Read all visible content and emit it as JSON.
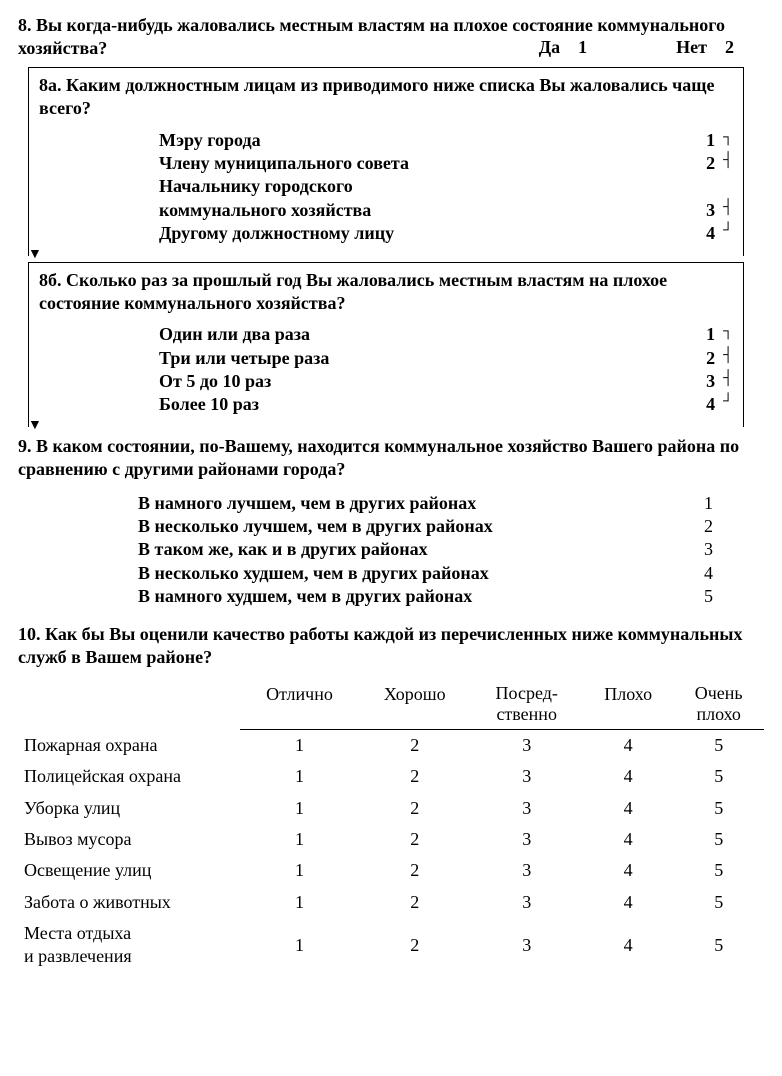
{
  "q8": {
    "text": "8. Вы когда-нибудь жаловались местным властям на плохое состояние коммунального хозяйства?",
    "yes_label": "Да",
    "yes_code": "1",
    "no_label": "Нет",
    "no_code": "2"
  },
  "q8a": {
    "text": "8а. Каким должностным лицам из приводимого ниже списка Вы жаловались чаще всего?",
    "options": [
      {
        "label": "Мэру города",
        "code": "1"
      },
      {
        "label": "Члену муниципального совета",
        "code": "2"
      },
      {
        "label_line1": "Начальнику городского",
        "label_line2": "коммунального хозяйства",
        "code": "3"
      },
      {
        "label": "Другому должностному лицу",
        "code": "4"
      }
    ]
  },
  "q8b": {
    "text": "8б. Сколько раз за прошлый год Вы жаловались местным властям на плохое состояние коммунального хозяйства?",
    "options": [
      {
        "label": "Один или два раза",
        "code": "1"
      },
      {
        "label": "Три или четыре раза",
        "code": "2"
      },
      {
        "label": "От 5 до 10 раз",
        "code": "3"
      },
      {
        "label": "Более 10 раз",
        "code": "4"
      }
    ]
  },
  "q9": {
    "text": "9. В каком состоянии, по-Вашему, находится коммунальное хозяйство Вашего района по сравнению с другими районами города?",
    "options": [
      {
        "label": "В намного лучшем, чем в других районах",
        "code": "1"
      },
      {
        "label": "В несколько лучшем, чем в других районах",
        "code": "2"
      },
      {
        "label": "В таком же, как и в других районах",
        "code": "3"
      },
      {
        "label": "В несколько худшем, чем в других районах",
        "code": "4"
      },
      {
        "label": "В намного худшем, чем в других районах",
        "code": "5"
      }
    ]
  },
  "q10": {
    "text": "10. Как бы Вы оценили качество работы каждой из перечисленных ниже коммунальных служб в Вашем районе?",
    "columns": [
      "Отлично",
      "Хорошо",
      "Посред-\nственно",
      "Плохо",
      "Очень\nплохо"
    ],
    "rows": [
      {
        "label": "Пожарная охрана",
        "values": [
          "1",
          "2",
          "3",
          "4",
          "5"
        ]
      },
      {
        "label": "Полицейская охрана",
        "values": [
          "1",
          "2",
          "3",
          "4",
          "5"
        ]
      },
      {
        "label": "Уборка улиц",
        "values": [
          "1",
          "2",
          "3",
          "4",
          "5"
        ]
      },
      {
        "label": "Вывоз мусора",
        "values": [
          "1",
          "2",
          "3",
          "4",
          "5"
        ]
      },
      {
        "label": "Освещение улиц",
        "values": [
          "1",
          "2",
          "3",
          "4",
          "5"
        ]
      },
      {
        "label": "Забота о животных",
        "values": [
          "1",
          "2",
          "3",
          "4",
          "5"
        ]
      },
      {
        "label": "Места отдыха\nи развлечения",
        "values": [
          "1",
          "2",
          "3",
          "4",
          "5"
        ]
      }
    ]
  }
}
